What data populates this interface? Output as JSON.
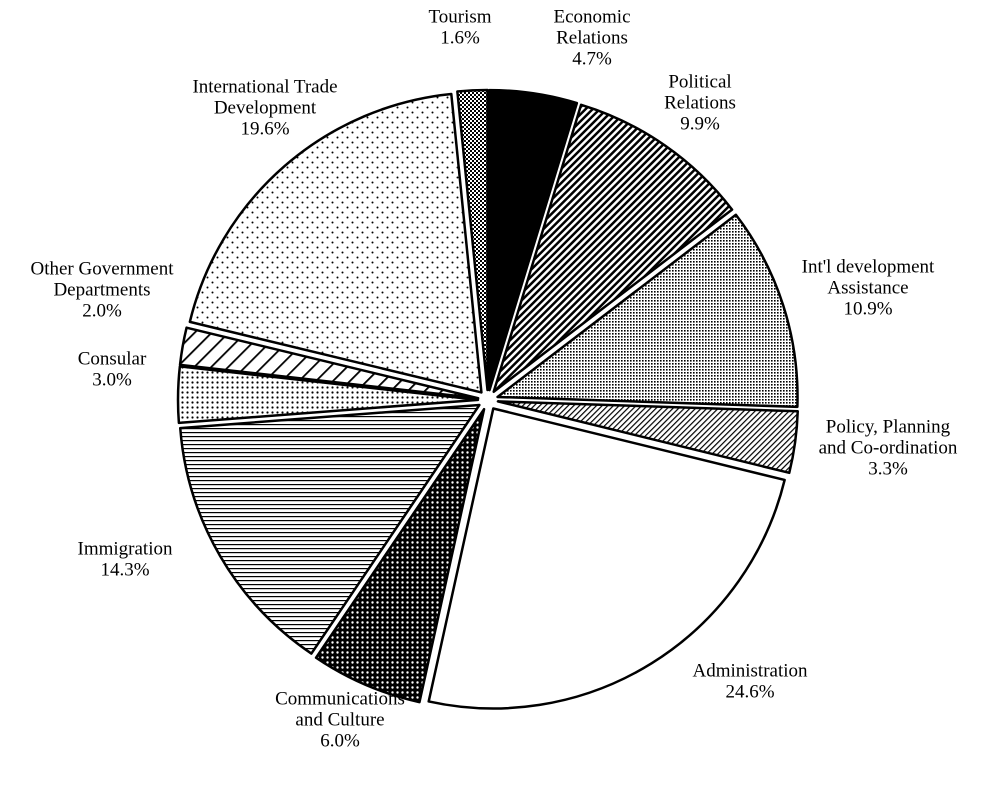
{
  "chart_data": {
    "type": "pie",
    "categories": [
      [
        "Economic",
        "Relations"
      ],
      [
        "Political",
        "Relations"
      ],
      [
        "Int'l development",
        "Assistance"
      ],
      [
        "Policy, Planning",
        "and Co-ordination"
      ],
      [
        "Administration"
      ],
      [
        "Communications",
        "and Culture"
      ],
      [
        "Immigration"
      ],
      [
        "Consular"
      ],
      [
        "Other Government",
        "Departments"
      ],
      [
        "International Trade",
        "Development"
      ],
      [
        "Tourism"
      ]
    ],
    "values": [
      4.7,
      9.9,
      10.9,
      3.3,
      24.6,
      6.0,
      14.3,
      3.0,
      2.0,
      19.6,
      1.6
    ],
    "value_labels": [
      "4.7%",
      "9.9%",
      "10.9%",
      "3.3%",
      "24.6%",
      "6.0%",
      "14.3%",
      "3.0%",
      "2.0%",
      "19.6%",
      "1.6%"
    ],
    "colors": [
      "#000000",
      "url(#hatch-dense)",
      "url(#dots-gray)",
      "url(#hatch-fine)",
      "#ffffff",
      "url(#dots-black)",
      "url(#horiz)",
      "url(#dots-mid)",
      "url(#hatch-sparse)",
      "url(#dots-sparse)",
      "url(#cross)"
    ]
  }
}
